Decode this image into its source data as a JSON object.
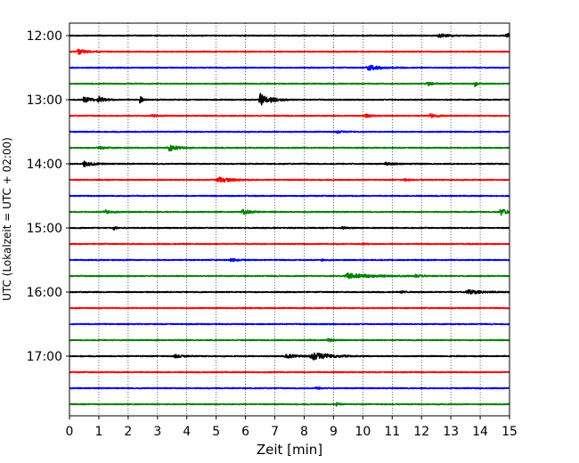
{
  "chart_data": {
    "type": "line",
    "title": "",
    "xlabel": "Zeit  [min]",
    "ylabel": "UTC (Lokalzeit = UTC + 02:00)",
    "xlim": [
      0,
      15
    ],
    "x_ticks": [
      0,
      1,
      2,
      3,
      4,
      5,
      6,
      7,
      8,
      9,
      10,
      11,
      12,
      13,
      14,
      15
    ],
    "y_tick_labels": [
      "12:00",
      "13:00",
      "14:00",
      "15:00",
      "16:00",
      "17:00"
    ],
    "grid": "vertical dotted",
    "color_cycle": [
      "#000000",
      "#ff0000",
      "#0000ff",
      "#008000"
    ],
    "series": [
      {
        "start": "12:00",
        "color": "#000000",
        "events": [
          {
            "t": 12.6,
            "amp": 0.25,
            "dur": 0.4
          },
          {
            "t": 14.9,
            "amp": 0.3,
            "dur": 0.3
          }
        ]
      },
      {
        "start": "12:15",
        "color": "#ff0000",
        "events": [
          {
            "t": 0.3,
            "amp": 0.3,
            "dur": 0.4
          }
        ]
      },
      {
        "start": "12:30",
        "color": "#0000ff",
        "events": [
          {
            "t": 10.2,
            "amp": 0.3,
            "dur": 0.6
          }
        ]
      },
      {
        "start": "12:45",
        "color": "#008000",
        "events": [
          {
            "t": 12.2,
            "amp": 0.2,
            "dur": 0.3
          },
          {
            "t": 13.8,
            "amp": 0.5,
            "dur": 0.1
          }
        ]
      },
      {
        "start": "13:00",
        "color": "#000000",
        "events": [
          {
            "t": 0.5,
            "amp": 0.4,
            "dur": 0.3
          },
          {
            "t": 1.0,
            "amp": 0.35,
            "dur": 0.3
          },
          {
            "t": 2.4,
            "amp": 0.6,
            "dur": 0.1
          },
          {
            "t": 6.5,
            "amp": 0.8,
            "dur": 0.3
          },
          {
            "t": 6.9,
            "amp": 0.25,
            "dur": 0.4
          }
        ]
      },
      {
        "start": "13:15",
        "color": "#ff0000",
        "events": [
          {
            "t": 2.8,
            "amp": 0.15,
            "dur": 0.3
          },
          {
            "t": 10.1,
            "amp": 0.2,
            "dur": 0.3
          },
          {
            "t": 12.3,
            "amp": 0.2,
            "dur": 0.4
          }
        ]
      },
      {
        "start": "13:30",
        "color": "#0000ff",
        "events": [
          {
            "t": 9.1,
            "amp": 0.15,
            "dur": 0.3
          }
        ]
      },
      {
        "start": "13:45",
        "color": "#008000",
        "events": [
          {
            "t": 3.4,
            "amp": 0.4,
            "dur": 0.4
          },
          {
            "t": 1.0,
            "amp": 0.15,
            "dur": 0.3
          }
        ]
      },
      {
        "start": "14:00",
        "color": "#000000",
        "events": [
          {
            "t": 0.5,
            "amp": 0.35,
            "dur": 0.4
          },
          {
            "t": 10.8,
            "amp": 0.15,
            "dur": 0.5
          }
        ]
      },
      {
        "start": "14:15",
        "color": "#ff0000",
        "events": [
          {
            "t": 5.1,
            "amp": 0.35,
            "dur": 0.6
          },
          {
            "t": 11.4,
            "amp": 0.15,
            "dur": 0.2
          }
        ]
      },
      {
        "start": "14:30",
        "color": "#0000ff",
        "events": []
      },
      {
        "start": "14:45",
        "color": "#008000",
        "events": [
          {
            "t": 1.2,
            "amp": 0.2,
            "dur": 0.4
          },
          {
            "t": 5.9,
            "amp": 0.3,
            "dur": 0.4
          },
          {
            "t": 14.7,
            "amp": 0.4,
            "dur": 0.3
          }
        ]
      },
      {
        "start": "15:00",
        "color": "#000000",
        "events": [
          {
            "t": 1.5,
            "amp": 0.45,
            "dur": 0.08
          },
          {
            "t": 9.3,
            "amp": 0.12,
            "dur": 0.3
          }
        ]
      },
      {
        "start": "15:15",
        "color": "#ff0000",
        "events": [
          {
            "t": 10.0,
            "amp": 0.12,
            "dur": 0.2
          }
        ]
      },
      {
        "start": "15:30",
        "color": "#0000ff",
        "events": [
          {
            "t": 5.5,
            "amp": 0.2,
            "dur": 0.3
          },
          {
            "t": 8.6,
            "amp": 0.12,
            "dur": 0.2
          }
        ]
      },
      {
        "start": "15:45",
        "color": "#008000",
        "events": [
          {
            "t": 9.5,
            "amp": 0.3,
            "dur": 1.2
          },
          {
            "t": 11.8,
            "amp": 0.15,
            "dur": 0.3
          }
        ]
      },
      {
        "start": "16:00",
        "color": "#000000",
        "events": [
          {
            "t": 13.6,
            "amp": 0.25,
            "dur": 0.7
          },
          {
            "t": 11.3,
            "amp": 0.1,
            "dur": 0.3
          }
        ]
      },
      {
        "start": "16:15",
        "color": "#ff0000",
        "events": []
      },
      {
        "start": "16:30",
        "color": "#0000ff",
        "events": []
      },
      {
        "start": "16:45",
        "color": "#008000",
        "events": [
          {
            "t": 8.8,
            "amp": 0.2,
            "dur": 0.3
          }
        ]
      },
      {
        "start": "17:00",
        "color": "#000000",
        "events": [
          {
            "t": 3.6,
            "amp": 0.2,
            "dur": 0.4
          },
          {
            "t": 7.4,
            "amp": 0.2,
            "dur": 0.6
          },
          {
            "t": 8.3,
            "amp": 0.45,
            "dur": 0.9
          }
        ]
      },
      {
        "start": "17:15",
        "color": "#ff0000",
        "events": []
      },
      {
        "start": "17:30",
        "color": "#0000ff",
        "events": [
          {
            "t": 8.4,
            "amp": 0.15,
            "dur": 0.2
          }
        ]
      },
      {
        "start": "17:45",
        "color": "#008000",
        "events": [
          {
            "t": 9.1,
            "amp": 0.2,
            "dur": 0.15
          }
        ]
      }
    ]
  }
}
